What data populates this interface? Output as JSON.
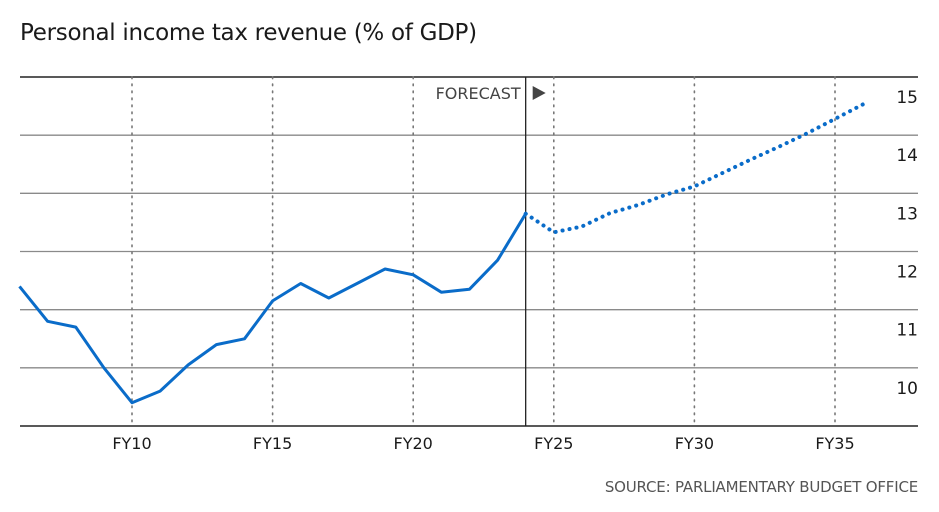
{
  "chart_data": {
    "type": "line",
    "title": "Personal income tax revenue (% of GDP)",
    "source": "SOURCE: PARLIAMENTARY BUDGET OFFICE",
    "forecast_label": "FORECAST",
    "forecast_start": 24,
    "xlim": [
      6,
      37
    ],
    "ylim": [
      9,
      15
    ],
    "x_ticks": [
      {
        "value": 10,
        "label": "FY10"
      },
      {
        "value": 15,
        "label": "FY15"
      },
      {
        "value": 20,
        "label": "FY20"
      },
      {
        "value": 25,
        "label": "FY25"
      },
      {
        "value": 30,
        "label": "FY30"
      },
      {
        "value": 35,
        "label": "FY35"
      }
    ],
    "y_ticks": [
      10,
      11,
      12,
      13,
      14,
      15
    ],
    "grid": true,
    "color": "#0a6cc9",
    "series": [
      {
        "style": "solid",
        "x": [
          6,
          7,
          8,
          9,
          10,
          11,
          12,
          13,
          14,
          15,
          16,
          17,
          18,
          19,
          20,
          21,
          22,
          23,
          24
        ],
        "values": [
          11.4,
          10.8,
          10.7,
          10.0,
          9.4,
          9.6,
          10.05,
          10.4,
          10.5,
          11.15,
          11.45,
          11.2,
          11.45,
          11.7,
          11.6,
          11.3,
          11.35,
          11.85,
          12.65
        ]
      },
      {
        "style": "dotted",
        "x": [
          24,
          25,
          26,
          27,
          28,
          29,
          30,
          31,
          32,
          33,
          34,
          35,
          36
        ],
        "values": [
          12.65,
          12.33,
          12.43,
          12.66,
          12.8,
          12.98,
          13.12,
          13.35,
          13.58,
          13.8,
          14.03,
          14.28,
          14.53
        ]
      }
    ]
  }
}
